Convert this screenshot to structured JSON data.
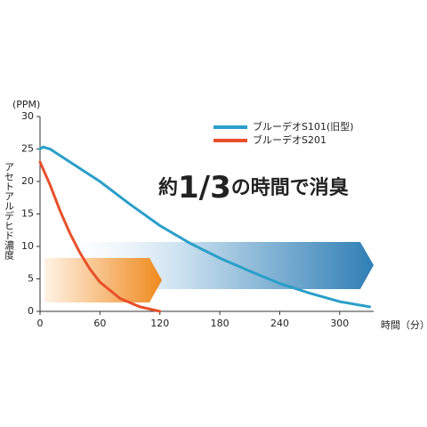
{
  "chart_data": {
    "type": "line",
    "y_unit": "(PPM)",
    "y_label": "アセトアルデヒド濃度",
    "x_label": "時間（分）",
    "annotation": [
      "約",
      "1/3",
      "の時間で消臭"
    ],
    "xlim": [
      0,
      334
    ],
    "xticks": [
      0,
      60,
      120,
      180,
      240,
      300
    ],
    "ylim": [
      0,
      30
    ],
    "yticks": [
      0,
      5,
      10,
      15,
      20,
      25,
      30
    ],
    "legend": "upper right",
    "series": [
      {
        "name": "ブルーデオS101(旧型)",
        "color": "#2a9fc9",
        "x": [
          0,
          3,
          10,
          30,
          60,
          90,
          120,
          150,
          180,
          210,
          240,
          270,
          300,
          330
        ],
        "values": [
          25,
          25.3,
          25,
          23,
          20,
          16.5,
          13.2,
          10.5,
          8.2,
          6.2,
          4.3,
          2.8,
          1.5,
          0.7
        ]
      },
      {
        "name": "ブルーデオS201",
        "color": "#e8502a",
        "x": [
          0,
          10,
          20,
          30,
          40,
          50,
          60,
          80,
          100,
          120
        ],
        "values": [
          23,
          19.5,
          15.5,
          12,
          9,
          6.5,
          4.5,
          2,
          0.7,
          0
        ]
      }
    ]
  }
}
